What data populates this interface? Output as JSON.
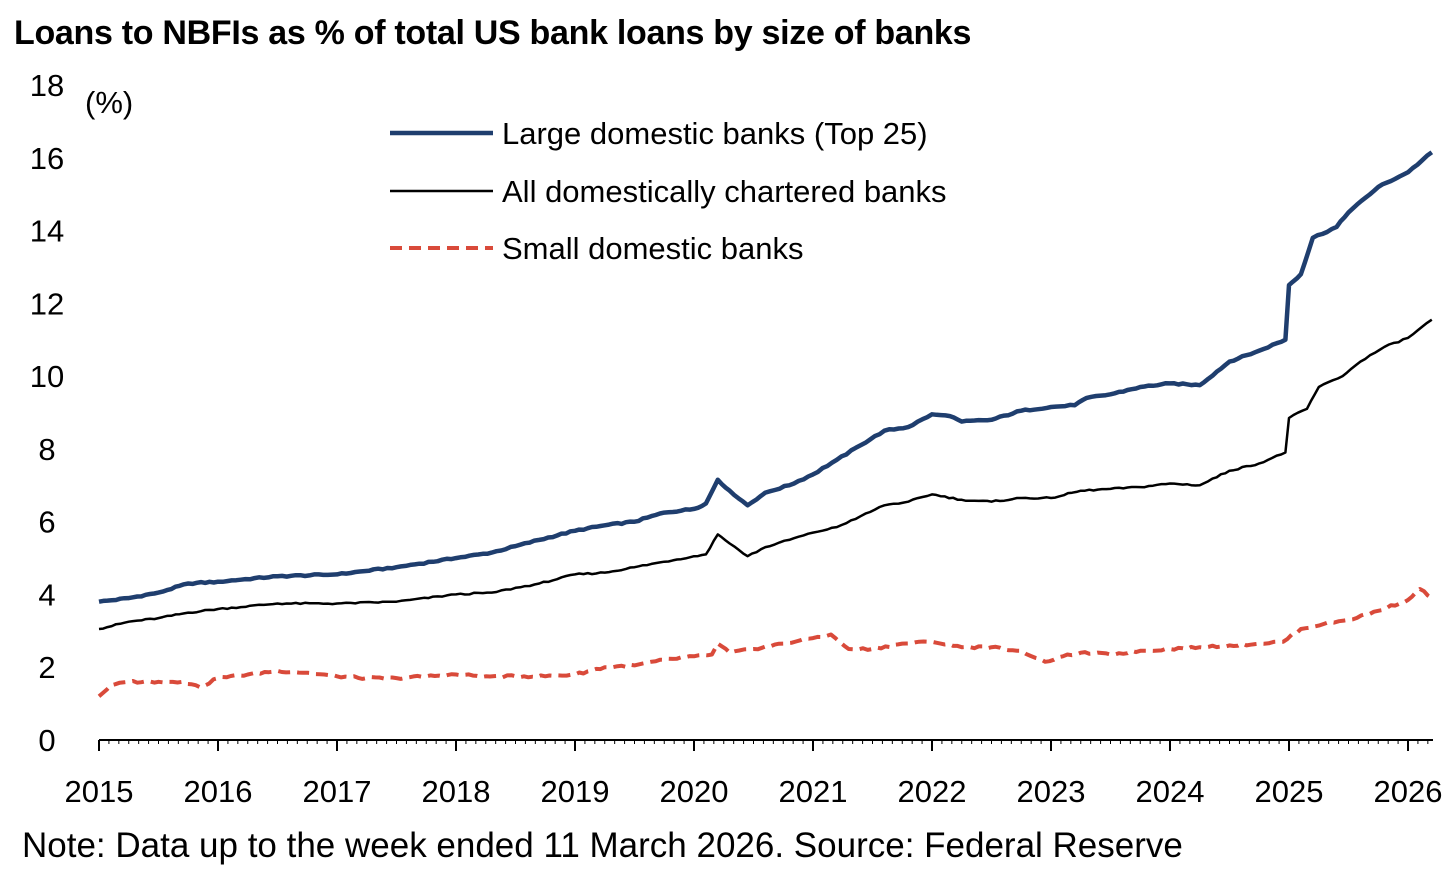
{
  "title": "Loans to NBFIs as % of total US bank loans by size of banks",
  "note": "Note: Data up to the week ended 11 March 2026. Source: Federal Reserve",
  "chart_data": {
    "type": "line",
    "title": "Loans to NBFIs as % of total US bank loans by size of banks",
    "ylabel": "(%)",
    "xlabel": "",
    "xlim": [
      2015.0,
      2026.2
    ],
    "ylim": [
      0,
      18
    ],
    "y_ticks": [
      0,
      2,
      4,
      6,
      8,
      10,
      12,
      14,
      16,
      18
    ],
    "x_ticks": [
      2015,
      2016,
      2017,
      2018,
      2019,
      2020,
      2021,
      2022,
      2023,
      2024,
      2025,
      2026
    ],
    "legend_position": "top-center",
    "grid": false,
    "series": [
      {
        "name": "Large domestic banks (Top 25)",
        "color": "#1f3e6e",
        "style": "solid-thick",
        "points": [
          [
            2015.0,
            3.8
          ],
          [
            2015.25,
            3.9
          ],
          [
            2015.5,
            4.05
          ],
          [
            2015.75,
            4.3
          ],
          [
            2016.0,
            4.35
          ],
          [
            2016.5,
            4.5
          ],
          [
            2017.0,
            4.55
          ],
          [
            2017.5,
            4.75
          ],
          [
            2018.0,
            5.0
          ],
          [
            2018.3,
            5.15
          ],
          [
            2018.7,
            5.5
          ],
          [
            2019.0,
            5.75
          ],
          [
            2019.25,
            5.9
          ],
          [
            2019.5,
            6.0
          ],
          [
            2019.75,
            6.25
          ],
          [
            2020.0,
            6.35
          ],
          [
            2020.1,
            6.5
          ],
          [
            2020.2,
            7.15
          ],
          [
            2020.3,
            6.85
          ],
          [
            2020.45,
            6.45
          ],
          [
            2020.6,
            6.8
          ],
          [
            2020.8,
            7.0
          ],
          [
            2021.0,
            7.3
          ],
          [
            2021.2,
            7.7
          ],
          [
            2021.4,
            8.1
          ],
          [
            2021.6,
            8.5
          ],
          [
            2021.8,
            8.6
          ],
          [
            2022.0,
            8.95
          ],
          [
            2022.15,
            8.9
          ],
          [
            2022.25,
            8.75
          ],
          [
            2022.5,
            8.8
          ],
          [
            2022.75,
            9.05
          ],
          [
            2023.0,
            9.15
          ],
          [
            2023.2,
            9.2
          ],
          [
            2023.3,
            9.4
          ],
          [
            2023.5,
            9.5
          ],
          [
            2023.75,
            9.7
          ],
          [
            2024.0,
            9.8
          ],
          [
            2024.25,
            9.75
          ],
          [
            2024.5,
            10.4
          ],
          [
            2024.75,
            10.7
          ],
          [
            2024.97,
            11.0
          ],
          [
            2025.0,
            12.5
          ],
          [
            2025.1,
            12.8
          ],
          [
            2025.2,
            13.8
          ],
          [
            2025.4,
            14.1
          ],
          [
            2025.5,
            14.5
          ],
          [
            2025.75,
            15.2
          ],
          [
            2026.0,
            15.6
          ],
          [
            2026.2,
            16.15
          ]
        ]
      },
      {
        "name": "All domestically chartered banks",
        "color": "#000000",
        "style": "solid",
        "points": [
          [
            2015.0,
            3.05
          ],
          [
            2015.25,
            3.25
          ],
          [
            2015.5,
            3.35
          ],
          [
            2015.75,
            3.5
          ],
          [
            2016.0,
            3.6
          ],
          [
            2016.5,
            3.75
          ],
          [
            2017.0,
            3.75
          ],
          [
            2017.5,
            3.8
          ],
          [
            2018.0,
            4.0
          ],
          [
            2018.3,
            4.05
          ],
          [
            2018.7,
            4.3
          ],
          [
            2019.0,
            4.55
          ],
          [
            2019.25,
            4.6
          ],
          [
            2019.5,
            4.75
          ],
          [
            2019.75,
            4.9
          ],
          [
            2020.0,
            5.05
          ],
          [
            2020.1,
            5.1
          ],
          [
            2020.2,
            5.65
          ],
          [
            2020.3,
            5.4
          ],
          [
            2020.45,
            5.05
          ],
          [
            2020.6,
            5.3
          ],
          [
            2020.8,
            5.5
          ],
          [
            2021.0,
            5.7
          ],
          [
            2021.2,
            5.85
          ],
          [
            2021.4,
            6.15
          ],
          [
            2021.6,
            6.45
          ],
          [
            2021.8,
            6.55
          ],
          [
            2022.0,
            6.75
          ],
          [
            2022.25,
            6.6
          ],
          [
            2022.5,
            6.55
          ],
          [
            2022.75,
            6.65
          ],
          [
            2023.0,
            6.65
          ],
          [
            2023.25,
            6.85
          ],
          [
            2023.5,
            6.9
          ],
          [
            2023.75,
            6.95
          ],
          [
            2024.0,
            7.05
          ],
          [
            2024.25,
            7.0
          ],
          [
            2024.5,
            7.4
          ],
          [
            2024.75,
            7.6
          ],
          [
            2024.97,
            7.9
          ],
          [
            2025.0,
            8.85
          ],
          [
            2025.15,
            9.1
          ],
          [
            2025.25,
            9.7
          ],
          [
            2025.45,
            10.0
          ],
          [
            2025.6,
            10.4
          ],
          [
            2025.8,
            10.8
          ],
          [
            2026.0,
            11.05
          ],
          [
            2026.2,
            11.55
          ]
        ]
      },
      {
        "name": "Small domestic banks",
        "color": "#d94a3a",
        "style": "dashed",
        "points": [
          [
            2015.0,
            1.2
          ],
          [
            2015.1,
            1.5
          ],
          [
            2015.25,
            1.6
          ],
          [
            2015.5,
            1.6
          ],
          [
            2015.7,
            1.6
          ],
          [
            2015.85,
            1.45
          ],
          [
            2016.0,
            1.7
          ],
          [
            2016.25,
            1.8
          ],
          [
            2016.5,
            1.9
          ],
          [
            2016.75,
            1.85
          ],
          [
            2017.0,
            1.75
          ],
          [
            2017.25,
            1.7
          ],
          [
            2017.5,
            1.7
          ],
          [
            2017.75,
            1.75
          ],
          [
            2018.0,
            1.8
          ],
          [
            2018.25,
            1.75
          ],
          [
            2018.5,
            1.75
          ],
          [
            2018.75,
            1.75
          ],
          [
            2019.0,
            1.8
          ],
          [
            2019.25,
            2.0
          ],
          [
            2019.5,
            2.05
          ],
          [
            2019.75,
            2.2
          ],
          [
            2020.0,
            2.3
          ],
          [
            2020.15,
            2.35
          ],
          [
            2020.2,
            2.65
          ],
          [
            2020.3,
            2.4
          ],
          [
            2020.5,
            2.5
          ],
          [
            2020.75,
            2.65
          ],
          [
            2021.0,
            2.8
          ],
          [
            2021.15,
            2.9
          ],
          [
            2021.3,
            2.5
          ],
          [
            2021.5,
            2.5
          ],
          [
            2021.75,
            2.65
          ],
          [
            2022.0,
            2.7
          ],
          [
            2022.25,
            2.55
          ],
          [
            2022.5,
            2.55
          ],
          [
            2022.75,
            2.45
          ],
          [
            2022.95,
            2.15
          ],
          [
            2023.1,
            2.3
          ],
          [
            2023.25,
            2.4
          ],
          [
            2023.5,
            2.35
          ],
          [
            2023.75,
            2.45
          ],
          [
            2024.0,
            2.5
          ],
          [
            2024.25,
            2.55
          ],
          [
            2024.5,
            2.6
          ],
          [
            2024.75,
            2.65
          ],
          [
            2024.95,
            2.7
          ],
          [
            2025.1,
            3.05
          ],
          [
            2025.3,
            3.2
          ],
          [
            2025.5,
            3.3
          ],
          [
            2025.75,
            3.55
          ],
          [
            2026.0,
            3.85
          ],
          [
            2026.1,
            4.15
          ],
          [
            2026.2,
            3.9
          ]
        ]
      }
    ]
  }
}
